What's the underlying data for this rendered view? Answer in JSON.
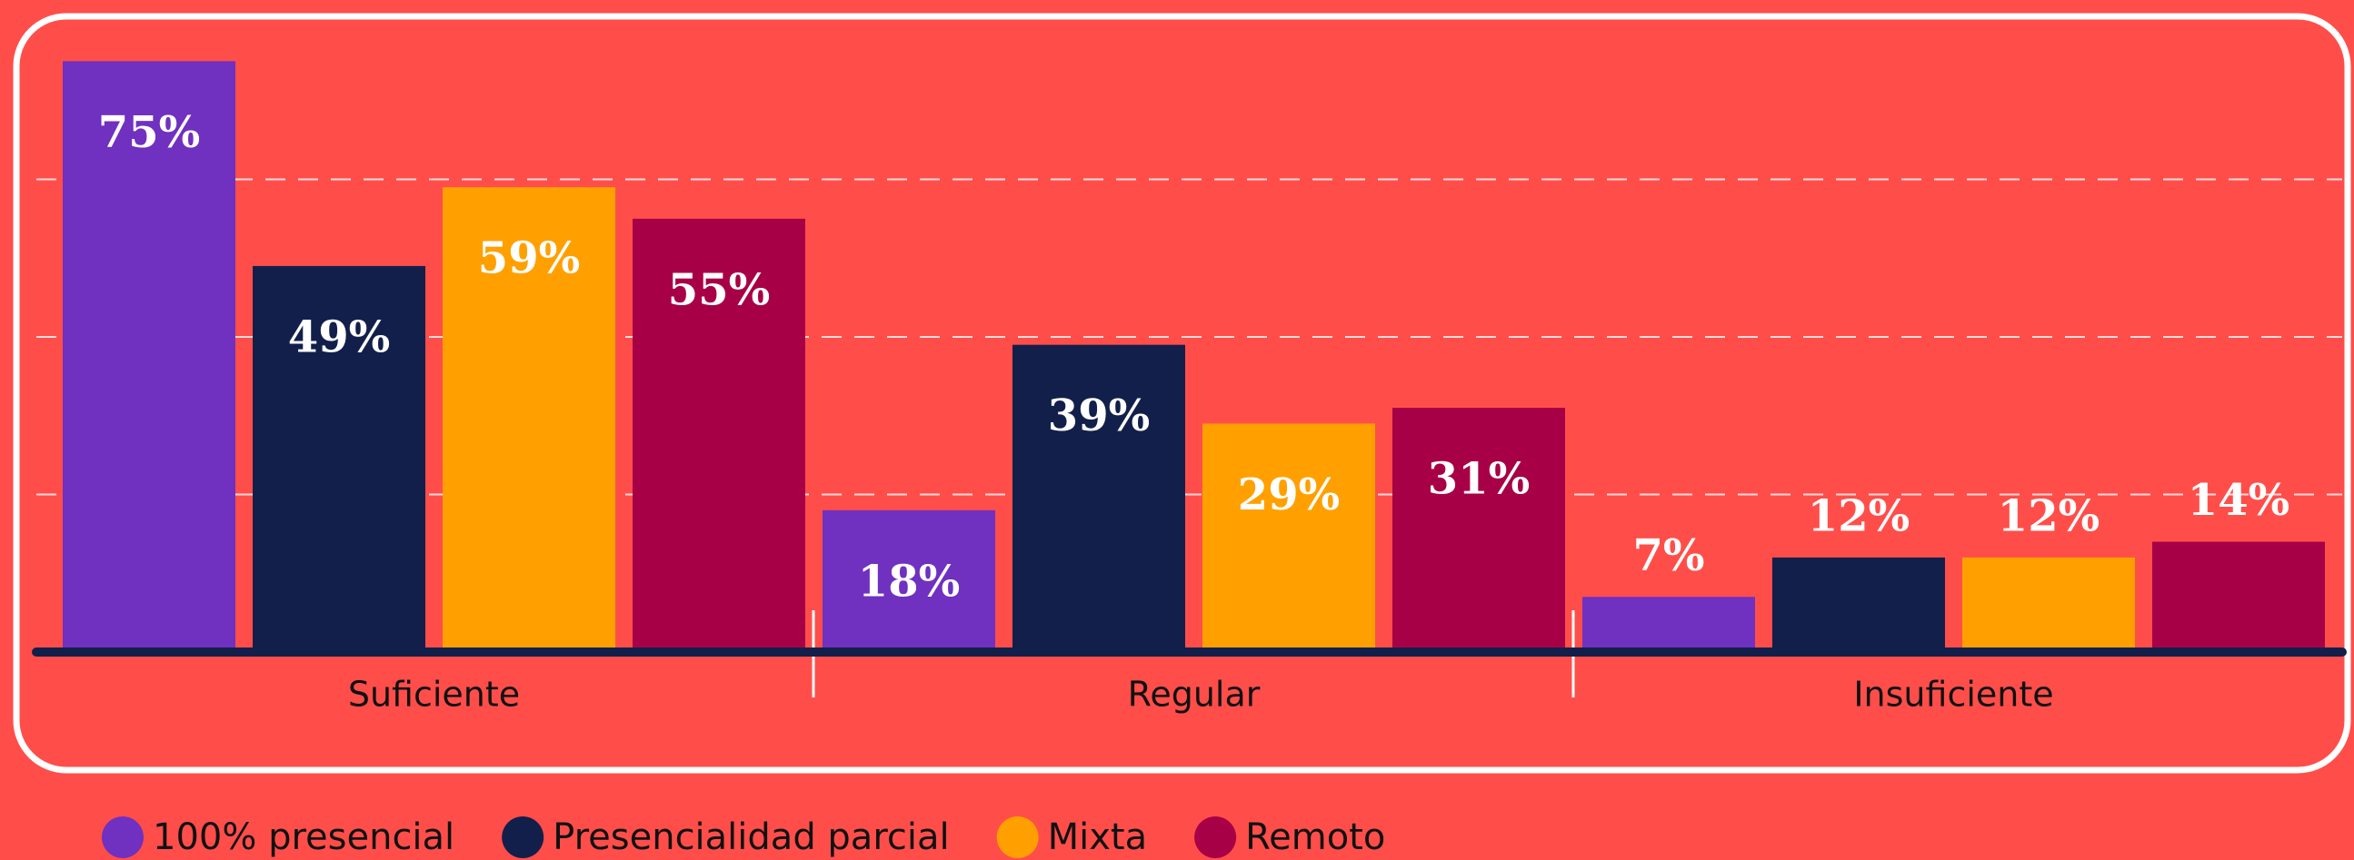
{
  "chart_data": {
    "type": "bar",
    "categories": [
      "Suficiente",
      "Regular",
      "Insuficiente"
    ],
    "series": [
      {
        "name": "100% presencial",
        "color": "#7030c0",
        "values": [
          75,
          18,
          7
        ],
        "value_labels": [
          "75%",
          "18%",
          "7%"
        ]
      },
      {
        "name": "Presencialidad parcial",
        "color": "#121f4b",
        "values": [
          49,
          39,
          12
        ],
        "value_labels": [
          "49%",
          "39%",
          "12%"
        ]
      },
      {
        "name": "Mixta",
        "color": "#ffa000",
        "values": [
          59,
          29,
          12
        ],
        "value_labels": [
          "59%",
          "29%",
          "12%"
        ]
      },
      {
        "name": "Remoto",
        "color": "#a80046",
        "values": [
          55,
          31,
          14
        ],
        "value_labels": [
          "55%",
          "31%",
          "14%"
        ]
      }
    ],
    "ylim": [
      0,
      80
    ],
    "yticks": [
      20,
      40,
      60
    ],
    "grid": true,
    "legend": "bottom-left"
  }
}
